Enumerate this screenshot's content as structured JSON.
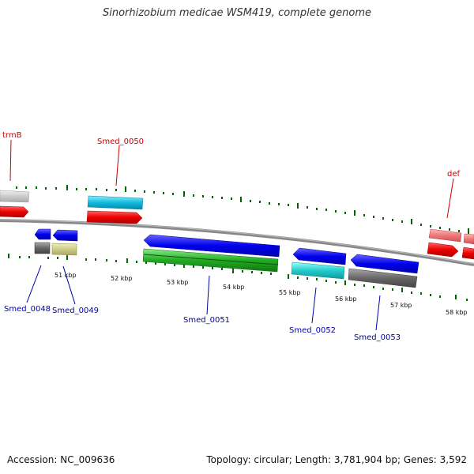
{
  "title": "Sinorhizobium medicae WSM419, complete genome",
  "footer": {
    "accession": "Accession: NC_009636",
    "stats": "Topology: circular; Length: 3,781,904 bp; Genes: 3,592"
  },
  "ticks": [
    "51 kbp",
    "52 kbp",
    "53 kbp",
    "54 kbp",
    "55 kbp",
    "56 kbp",
    "57 kbp",
    "58 kbp"
  ],
  "top_labels": [
    "trmB",
    "Smed_0050",
    "def"
  ],
  "bottom_labels": [
    "Smed_0048",
    "Smed_0049",
    "Smed_0051",
    "Smed_0052",
    "Smed_0053"
  ],
  "colors": {
    "forward_label": "#cc0000",
    "reverse_label": "#0000aa",
    "tick": "#006600",
    "backbone": "#888888"
  }
}
